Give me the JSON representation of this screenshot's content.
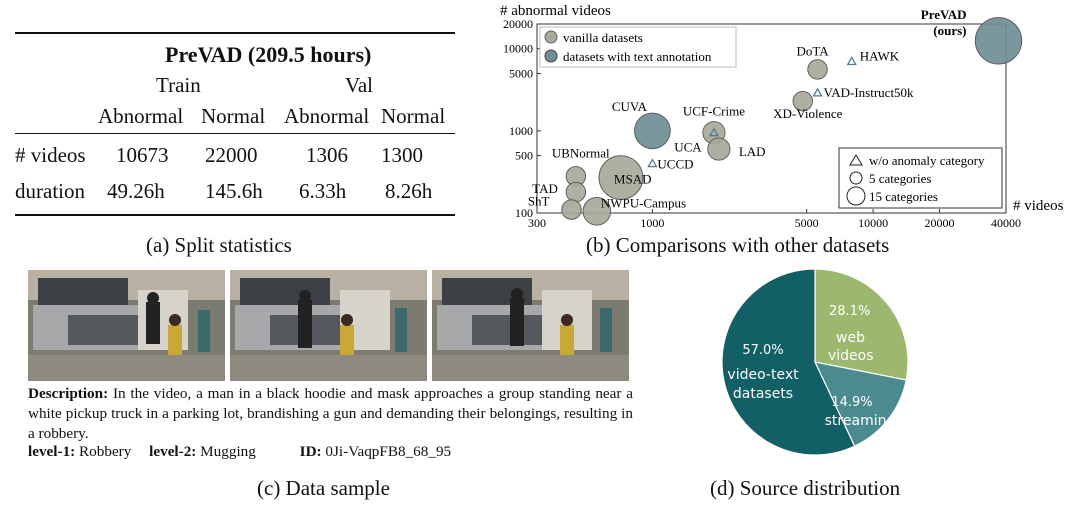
{
  "table": {
    "title": "PreVAD (209.5 hours)",
    "groups": [
      "Train",
      "Val"
    ],
    "columns": [
      "Abnormal",
      "Normal",
      "Abnormal",
      "Normal"
    ],
    "rows": [
      {
        "label": "# videos",
        "values": [
          "10673",
          "22000",
          "1306",
          "1300"
        ]
      },
      {
        "label": "duration",
        "values": [
          "49.26h",
          "145.6h",
          "6.33h",
          "8.26h"
        ]
      }
    ],
    "caption": "(a) Split statistics"
  },
  "chart_data": [
    {
      "type": "scatter",
      "title": "",
      "xlabel": "# videos",
      "ylabel": "# abnormal videos",
      "xscale": "log",
      "yscale": "log",
      "xlim": [
        300,
        40000
      ],
      "ylim": [
        100,
        20000
      ],
      "xticks": [
        "300",
        "1000",
        "5000",
        "10000",
        "20000",
        "40000"
      ],
      "yticks": [
        "100",
        "500",
        "1000",
        "5000",
        "10000",
        "20000"
      ],
      "legend": [
        "vanilla datasets",
        "datasets with text annotation"
      ],
      "size_legend": [
        "w/o anomaly category",
        "5 categories",
        "15 categories"
      ],
      "colors": {
        "vanilla": "#a9a99a",
        "text": "#6f8e96",
        "triangle": "#4f7f8c"
      },
      "points": [
        {
          "name": "PreVAD",
          "sub": "(ours)",
          "x": 37000,
          "y": 12500,
          "cat": "text",
          "size": 15
        },
        {
          "name": "DoTA",
          "x": 5600,
          "y": 5600,
          "cat": "vanilla",
          "size": 5
        },
        {
          "name": "HAWK",
          "x": 8000,
          "y": 7000,
          "cat": "text",
          "size": 0
        },
        {
          "name": "VAD-Instruct50k",
          "x": 5600,
          "y": 2900,
          "cat": "text",
          "size": 0
        },
        {
          "name": "XD-Violence",
          "x": 4800,
          "y": 2300,
          "cat": "vanilla",
          "size": 5
        },
        {
          "name": "CUVA",
          "x": 1000,
          "y": 1000,
          "cat": "text",
          "size": 11
        },
        {
          "name": "UCF-Crime",
          "x": 1900,
          "y": 950,
          "cat": "vanilla",
          "size": 6
        },
        {
          "name": "UCA",
          "x": 1900,
          "y": 950,
          "cat": "text",
          "size": 0
        },
        {
          "name": "LAD",
          "x": 2000,
          "y": 600,
          "cat": "vanilla",
          "size": 6
        },
        {
          "name": "UCCD",
          "x": 1000,
          "y": 400,
          "cat": "text",
          "size": 0
        },
        {
          "name": "UBNormal",
          "x": 450,
          "y": 280,
          "cat": "vanilla",
          "size": 5
        },
        {
          "name": "MSAD",
          "x": 720,
          "y": 270,
          "cat": "vanilla",
          "size": 14
        },
        {
          "name": "TAD",
          "x": 450,
          "y": 180,
          "cat": "vanilla",
          "size": 5
        },
        {
          "name": "ShT",
          "x": 430,
          "y": 110,
          "cat": "vanilla",
          "size": 5
        },
        {
          "name": "NWPU-Campus",
          "x": 560,
          "y": 105,
          "cat": "vanilla",
          "size": 8
        }
      ],
      "caption": "(b) Comparisons with other datasets"
    },
    {
      "type": "pie",
      "categories": [
        "web videos",
        "streaming",
        "video-text datasets"
      ],
      "values": [
        28.1,
        14.9,
        57.0
      ],
      "labels": [
        "28.1%",
        "14.9%",
        "57.0%"
      ],
      "colors": [
        "#9bb86e",
        "#4b8a8f",
        "#135f66"
      ],
      "caption": "(d) Source distribution"
    }
  ],
  "sample": {
    "description_label": "Description:",
    "description": "In the video, a man in a black hoodie and mask approaches a group standing near a white pickup truck in a parking lot, brandishing a gun and demanding their belongings, resulting in a robbery.",
    "level1_label": "level-1:",
    "level1": "Robbery",
    "level2_label": "level-2:",
    "level2": "Mugging",
    "id_label": "ID:",
    "id": "0Ji-VaqpFB8_68_95",
    "caption": "(c) Data sample"
  }
}
